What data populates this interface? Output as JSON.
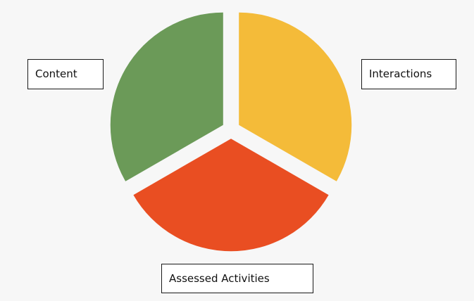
{
  "diagram": {
    "segments": [
      {
        "id": "content",
        "label": "Content",
        "color": "#6b9a58"
      },
      {
        "id": "interactions",
        "label": "Interactions",
        "color": "#f4bb39"
      },
      {
        "id": "assessed",
        "label": "Assessed Activities",
        "color": "#e94e22"
      }
    ]
  }
}
